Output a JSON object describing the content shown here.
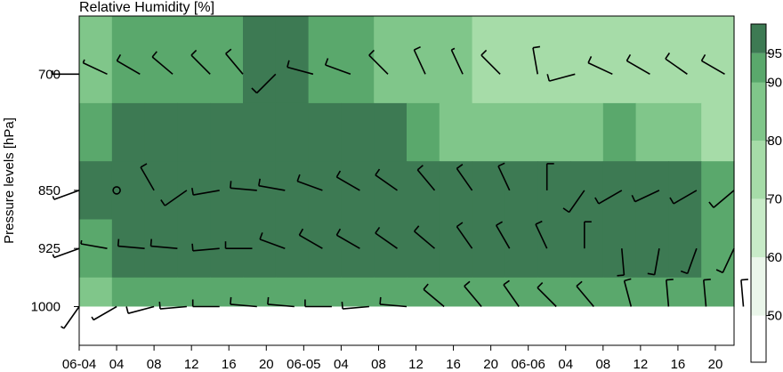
{
  "chart_data": {
    "type": "heatmap",
    "title": "Relative Humidity [%]",
    "ylabel": "Pressure levels [hPa]",
    "xlabel": "",
    "x_tick_labels": [
      "06-04",
      "04",
      "08",
      "12",
      "16",
      "20",
      "06-05",
      "04",
      "08",
      "12",
      "16",
      "20",
      "06-06",
      "04",
      "08",
      "12",
      "16",
      "20"
    ],
    "x_tick_hours": [
      0,
      4,
      8,
      12,
      16,
      20,
      24,
      28,
      32,
      36,
      40,
      44,
      48,
      52,
      56,
      60,
      64,
      68
    ],
    "x_range_hours": [
      0,
      70
    ],
    "y_tick_labels": [
      "700",
      "850",
      "925",
      "1000"
    ],
    "y_ticks_hpa": [
      700,
      850,
      925,
      1000
    ],
    "y_range_hpa": [
      625,
      1050
    ],
    "surface_hpa": 1000,
    "colorbar": {
      "ticks": [
        50,
        60,
        70,
        80,
        90,
        95
      ],
      "range": [
        42,
        100
      ],
      "colors": [
        "#ffffff",
        "#eaf6ea",
        "#c8ebc8",
        "#a6dca8",
        "#80c68a",
        "#5aa86c",
        "#3d7a53"
      ]
    },
    "humidity_levels": [
      {
        "pressure": 700,
        "values": [
          88,
          90,
          92,
          91,
          93,
          96,
          96,
          90,
          92,
          88,
          86,
          86,
          78,
          74,
          75,
          73,
          74,
          74,
          72,
          71
        ]
      },
      {
        "pressure": 775,
        "values": [
          92,
          96,
          96,
          96,
          96,
          95,
          97,
          97,
          97,
          97,
          91,
          86,
          88,
          86,
          82,
          89,
          90,
          86,
          84,
          78
        ]
      },
      {
        "pressure": 850,
        "values": [
          95,
          97,
          97,
          97,
          97,
          97,
          97,
          97,
          97,
          97,
          97,
          97,
          97,
          97,
          97,
          97,
          97,
          97,
          96,
          92
        ]
      },
      {
        "pressure": 925,
        "values": [
          93,
          97,
          97,
          97,
          97,
          97,
          96,
          96,
          96,
          97,
          97,
          97,
          97,
          97,
          97,
          97,
          97,
          97,
          97,
          91
        ]
      },
      {
        "pressure": 1000,
        "values": [
          86,
          90,
          92,
          91,
          92,
          91,
          92,
          90,
          91,
          92,
          91,
          92,
          92,
          92,
          92,
          91,
          92,
          92,
          92,
          91
        ]
      }
    ],
    "wind_barbs": [
      {
        "pressure": 700,
        "winds": [
          [
            0,
            270,
            5
          ],
          [
            3,
            295,
            5
          ],
          [
            6.5,
            300,
            10
          ],
          [
            10,
            310,
            10
          ],
          [
            14,
            315,
            10
          ],
          [
            17.5,
            320,
            10
          ],
          [
            21,
            225,
            10
          ],
          [
            25,
            285,
            10
          ],
          [
            29,
            290,
            10
          ],
          [
            33,
            315,
            10
          ],
          [
            37,
            335,
            10
          ],
          [
            41,
            335,
            5
          ],
          [
            45,
            315,
            10
          ],
          [
            49,
            350,
            10
          ],
          [
            53,
            255,
            10
          ],
          [
            57,
            295,
            10
          ],
          [
            61,
            300,
            10
          ],
          [
            65,
            305,
            10
          ],
          [
            69,
            300,
            10
          ]
        ]
      },
      {
        "pressure": 850,
        "winds": [
          [
            0,
            250,
            5
          ],
          [
            4,
            0,
            0
          ],
          [
            8,
            330,
            10
          ],
          [
            11.5,
            235,
            10
          ],
          [
            15,
            260,
            10
          ],
          [
            19,
            275,
            10
          ],
          [
            22,
            280,
            10
          ],
          [
            26,
            290,
            10
          ],
          [
            30,
            300,
            10
          ],
          [
            34,
            305,
            10
          ],
          [
            38,
            320,
            10
          ],
          [
            42,
            325,
            10
          ],
          [
            46,
            335,
            10
          ],
          [
            50,
            360,
            10
          ],
          [
            54,
            215,
            10
          ],
          [
            58,
            240,
            10
          ],
          [
            62,
            245,
            10
          ],
          [
            66,
            240,
            10
          ],
          [
            70,
            230,
            10
          ]
        ]
      },
      {
        "pressure": 925,
        "winds": [
          [
            0,
            250,
            5
          ],
          [
            3,
            280,
            5
          ],
          [
            7,
            275,
            10
          ],
          [
            10.5,
            275,
            10
          ],
          [
            15,
            265,
            10
          ],
          [
            18.5,
            270,
            10
          ],
          [
            22,
            290,
            10
          ],
          [
            26,
            300,
            10
          ],
          [
            30,
            300,
            10
          ],
          [
            34,
            305,
            10
          ],
          [
            38,
            310,
            10
          ],
          [
            42,
            325,
            10
          ],
          [
            46,
            330,
            10
          ],
          [
            50,
            335,
            10
          ],
          [
            54,
            360,
            10
          ],
          [
            58,
            175,
            10
          ],
          [
            62,
            190,
            10
          ],
          [
            66,
            200,
            10
          ],
          [
            70,
            205,
            10
          ]
        ]
      },
      {
        "pressure": 1000,
        "winds": [
          [
            0,
            215,
            5
          ],
          [
            4,
            240,
            5
          ],
          [
            8,
            255,
            10
          ],
          [
            11.5,
            265,
            10
          ],
          [
            15,
            270,
            10
          ],
          [
            19,
            275,
            10
          ],
          [
            23,
            275,
            10
          ],
          [
            27,
            270,
            10
          ],
          [
            31,
            265,
            10
          ],
          [
            35,
            275,
            10
          ],
          [
            39,
            310,
            10
          ],
          [
            43,
            320,
            10
          ],
          [
            47,
            325,
            10
          ],
          [
            51,
            315,
            10
          ],
          [
            55,
            320,
            10
          ],
          [
            59,
            345,
            10
          ],
          [
            63,
            355,
            10
          ],
          [
            67,
            355,
            10
          ],
          [
            71,
            355,
            10
          ]
        ]
      }
    ]
  }
}
